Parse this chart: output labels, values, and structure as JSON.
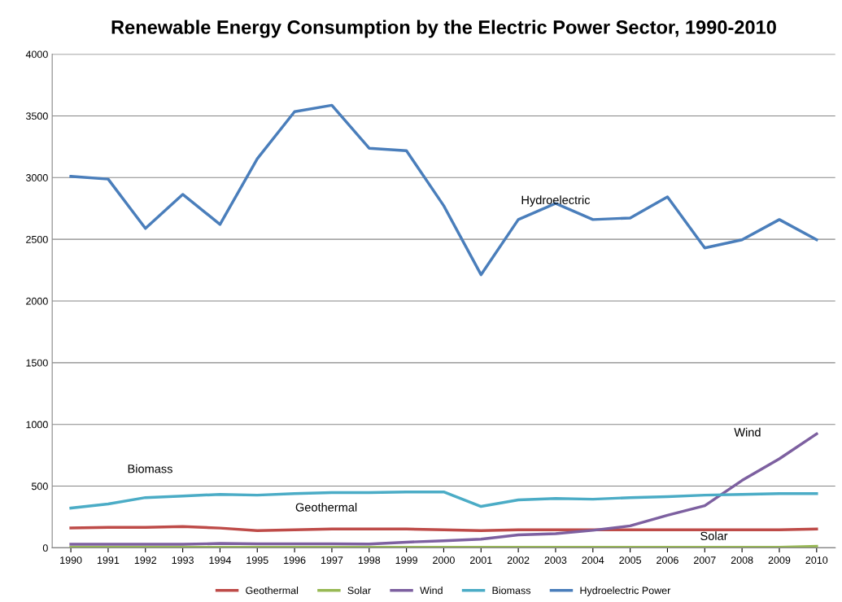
{
  "chart_data": {
    "type": "line",
    "title": "Renewable Energy Consumption by the Electric Power Sector, 1990-2010",
    "categories": [
      "1990",
      "1991",
      "1992",
      "1993",
      "1994",
      "1995",
      "1996",
      "1997",
      "1998",
      "1999",
      "2000",
      "2001",
      "2002",
      "2003",
      "2004",
      "2005",
      "2006",
      "2007",
      "2008",
      "2009",
      "2010"
    ],
    "series": [
      {
        "name": "Geothermal",
        "color": "#be4b48",
        "values": [
          161,
          166,
          166,
          173,
          160,
          139,
          146,
          152,
          152,
          152,
          146,
          139,
          146,
          146,
          146,
          146,
          146,
          146,
          146,
          146,
          152
        ]
      },
      {
        "name": "Solar",
        "color": "#98b954",
        "values": [
          5,
          5,
          5,
          5,
          5,
          5,
          5,
          5,
          5,
          5,
          5,
          5,
          5,
          5,
          5,
          5,
          5,
          5,
          5,
          5,
          13
        ]
      },
      {
        "name": "Wind",
        "color": "#7d60a0",
        "values": [
          29,
          29,
          29,
          29,
          35,
          33,
          33,
          33,
          30,
          46,
          57,
          70,
          105,
          115,
          142,
          178,
          264,
          341,
          546,
          721,
          923
        ]
      },
      {
        "name": "Biomass",
        "color": "#4bacc6",
        "values": [
          322,
          355,
          407,
          420,
          433,
          427,
          440,
          447,
          447,
          453,
          453,
          335,
          388,
          400,
          394,
          407,
          414,
          427,
          433,
          440,
          440
        ]
      },
      {
        "name": "Hydroelectric Power",
        "color": "#4a7ebb",
        "values": [
          3010,
          2988,
          2588,
          2864,
          2621,
          3153,
          3534,
          3586,
          3238,
          3218,
          2772,
          2213,
          2660,
          2791,
          2660,
          2673,
          2844,
          2430,
          2496,
          2660,
          2496
        ]
      }
    ],
    "ylim": [
      0,
      4000
    ],
    "yticks": [
      0,
      500,
      1000,
      1500,
      2000,
      2500,
      3000,
      3500,
      4000
    ],
    "grid": "y",
    "legend": "bottom",
    "marker": "none",
    "line_style": "solid",
    "annotations": [
      {
        "text": "Hydroelectric",
        "x": "2003",
        "y": 2810
      },
      "Wind",
      "Biomass",
      "Geothermal",
      "Solar"
    ]
  }
}
